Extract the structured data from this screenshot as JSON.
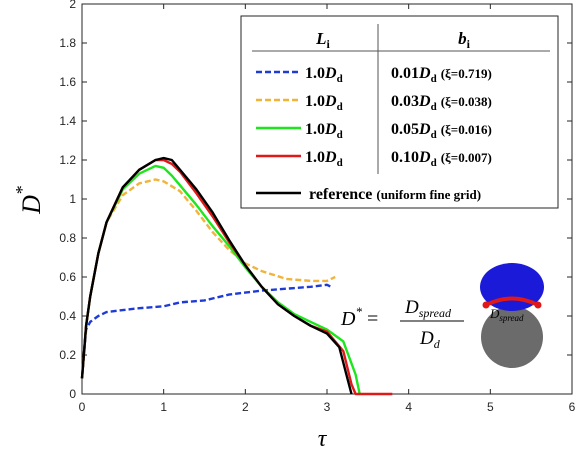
{
  "chart_data": {
    "type": "line",
    "xlabel": "τ",
    "ylabel": "D",
    "ylabel_sup": "*",
    "xlim": [
      0,
      6
    ],
    "ylim": [
      0,
      2
    ],
    "xticks": [
      "0",
      "1",
      "2",
      "3",
      "4",
      "5",
      "6"
    ],
    "yticks": [
      "0",
      "0.2",
      "0.4",
      "0.6",
      "0.8",
      "1",
      "1.2",
      "1.4",
      "1.6",
      "1.8",
      "2"
    ],
    "grid": false,
    "legend": {
      "placement": "top-right",
      "header_left": "L",
      "header_left_sub": "i",
      "header_right": "b",
      "header_right_sub": "i",
      "rows": [
        {
          "l_coef": "1.0",
          "l_sym": "D",
          "l_sub": "d",
          "b_coef": "0.01",
          "b_sym": "D",
          "b_sub": "d",
          "note": "(ξ=0.719)"
        },
        {
          "l_coef": "1.0",
          "l_sym": "D",
          "l_sub": "d",
          "b_coef": "0.03",
          "b_sym": "D",
          "b_sub": "d",
          "note": "(ξ=0.038)"
        },
        {
          "l_coef": "1.0",
          "l_sym": "D",
          "l_sub": "d",
          "b_coef": "0.05",
          "b_sym": "D",
          "b_sub": "d",
          "note": "(ξ=0.016)"
        },
        {
          "l_coef": "1.0",
          "l_sym": "D",
          "l_sub": "d",
          "b_coef": "0.10",
          "b_sym": "D",
          "b_sub": "d",
          "note": "(ξ=0.007)"
        }
      ],
      "reference_label": "reference",
      "reference_note": "(uniform fine grid)"
    },
    "equation": {
      "lhs": "D",
      "lhs_sup": "*",
      "numerator": "D",
      "numerator_sub": "spread",
      "denominator": "D",
      "denominator_sub": "d",
      "image_label": "D",
      "image_label_sub": "spread"
    },
    "series": [
      {
        "color": "#1f3bd6",
        "dash": "6,3",
        "x": [
          0,
          0.05,
          0.1,
          0.2,
          0.3,
          0.5,
          0.7,
          1.0,
          1.2,
          1.5,
          1.8,
          2.0,
          2.2,
          2.5,
          2.8,
          3.0,
          3.05
        ],
        "y": [
          0.08,
          0.33,
          0.37,
          0.4,
          0.42,
          0.43,
          0.44,
          0.45,
          0.47,
          0.48,
          0.51,
          0.52,
          0.53,
          0.54,
          0.55,
          0.56,
          0.55
        ]
      },
      {
        "color": "#f0b43a",
        "dash": "6,3",
        "x": [
          0,
          0.05,
          0.1,
          0.2,
          0.3,
          0.5,
          0.7,
          0.9,
          1.0,
          1.2,
          1.4,
          1.6,
          1.8,
          2.0,
          2.2,
          2.5,
          2.8,
          3.0,
          3.1
        ],
        "y": [
          0.08,
          0.35,
          0.5,
          0.72,
          0.88,
          1.02,
          1.08,
          1.1,
          1.09,
          1.04,
          0.94,
          0.83,
          0.74,
          0.67,
          0.63,
          0.59,
          0.58,
          0.58,
          0.6
        ]
      },
      {
        "color": "#1ee61e",
        "dash": "",
        "x": [
          0,
          0.05,
          0.1,
          0.2,
          0.3,
          0.5,
          0.7,
          0.9,
          1.0,
          1.1,
          1.2,
          1.4,
          1.6,
          1.8,
          2.0,
          2.2,
          2.4,
          2.6,
          2.8,
          3.0,
          3.2,
          3.35,
          3.4
        ],
        "y": [
          0.08,
          0.35,
          0.5,
          0.72,
          0.88,
          1.05,
          1.13,
          1.17,
          1.16,
          1.12,
          1.07,
          0.97,
          0.86,
          0.76,
          0.65,
          0.55,
          0.47,
          0.41,
          0.37,
          0.33,
          0.27,
          0.1,
          0
        ]
      },
      {
        "color": "#e01818",
        "dash": "",
        "x": [
          0,
          0.05,
          0.1,
          0.2,
          0.3,
          0.5,
          0.7,
          0.9,
          1.0,
          1.1,
          1.2,
          1.4,
          1.6,
          1.8,
          2.0,
          2.2,
          2.4,
          2.6,
          2.8,
          3.0,
          3.2,
          3.3,
          3.35,
          3.5,
          3.8
        ],
        "y": [
          0.08,
          0.35,
          0.5,
          0.72,
          0.88,
          1.06,
          1.15,
          1.2,
          1.2,
          1.18,
          1.14,
          1.03,
          0.91,
          0.78,
          0.66,
          0.55,
          0.46,
          0.4,
          0.35,
          0.32,
          0.22,
          0.05,
          0,
          0,
          0
        ]
      },
      {
        "color": "#000000",
        "dash": "",
        "x": [
          0,
          0.05,
          0.1,
          0.2,
          0.3,
          0.5,
          0.7,
          0.9,
          1.0,
          1.1,
          1.2,
          1.4,
          1.6,
          1.8,
          2.0,
          2.2,
          2.4,
          2.6,
          2.8,
          3.0,
          3.15,
          3.25,
          3.3
        ],
        "y": [
          0.08,
          0.35,
          0.5,
          0.72,
          0.88,
          1.06,
          1.15,
          1.2,
          1.21,
          1.2,
          1.15,
          1.05,
          0.93,
          0.79,
          0.66,
          0.55,
          0.46,
          0.4,
          0.35,
          0.31,
          0.24,
          0.08,
          0
        ]
      }
    ]
  }
}
